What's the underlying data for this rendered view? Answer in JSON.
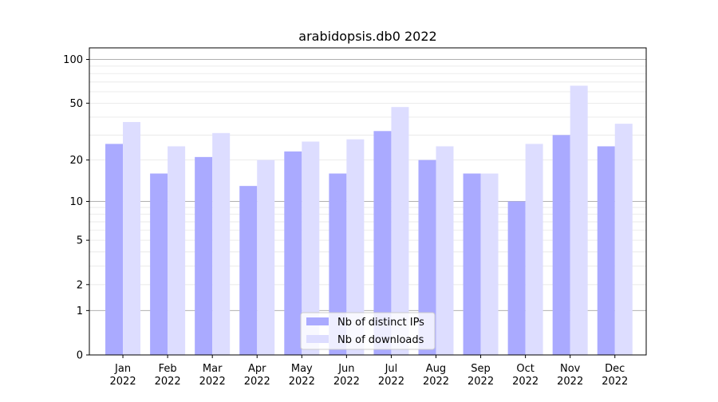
{
  "chart_data": {
    "type": "bar",
    "title": "arabidopsis.db0 2022",
    "xlabel": "",
    "ylabel": "",
    "scale": "symlog",
    "ylim": [
      0,
      120
    ],
    "yticks": [
      0,
      1,
      2,
      5,
      10,
      20,
      50,
      100
    ],
    "ytick_labels": [
      "0",
      "1",
      "2",
      "5",
      "10",
      "20",
      "50",
      "100"
    ],
    "categories": [
      {
        "month": "Jan",
        "year": "2022"
      },
      {
        "month": "Feb",
        "year": "2022"
      },
      {
        "month": "Mar",
        "year": "2022"
      },
      {
        "month": "Apr",
        "year": "2022"
      },
      {
        "month": "May",
        "year": "2022"
      },
      {
        "month": "Jun",
        "year": "2022"
      },
      {
        "month": "Jul",
        "year": "2022"
      },
      {
        "month": "Aug",
        "year": "2022"
      },
      {
        "month": "Sep",
        "year": "2022"
      },
      {
        "month": "Oct",
        "year": "2022"
      },
      {
        "month": "Nov",
        "year": "2022"
      },
      {
        "month": "Dec",
        "year": "2022"
      }
    ],
    "series": [
      {
        "name": "Nb of distinct IPs",
        "color": "#aaaaff",
        "values": [
          26,
          16,
          21,
          13,
          23,
          16,
          32,
          20,
          16,
          10,
          30,
          25
        ]
      },
      {
        "name": "Nb of downloads",
        "color": "#ddddff",
        "values": [
          37,
          25,
          31,
          20,
          27,
          28,
          47,
          25,
          16,
          26,
          66,
          36
        ]
      }
    ],
    "grid": true,
    "legend_position": "bottom-center"
  }
}
